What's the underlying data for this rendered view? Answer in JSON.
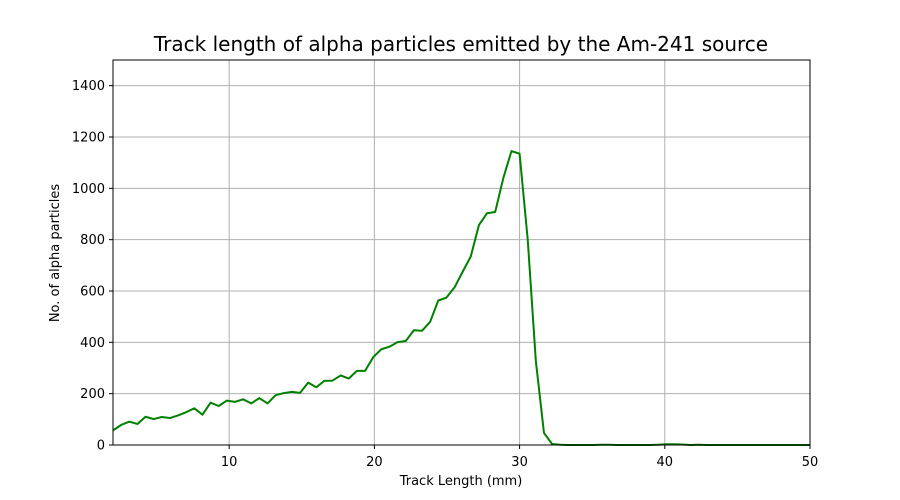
{
  "chart_data": {
    "type": "line",
    "title": "Track length of alpha particles emitted by the Am-241 source",
    "xlabel": "Track Length (mm)",
    "ylabel": "No. of alpha particles",
    "xlim": [
      2,
      50
    ],
    "ylim": [
      0,
      1500
    ],
    "xticks": [
      10,
      20,
      30,
      40,
      50
    ],
    "yticks": [
      0,
      200,
      400,
      600,
      800,
      1000,
      1200,
      1400
    ],
    "grid": true,
    "series": [
      {
        "color": "#008000",
        "x": [
          2.0,
          2.56,
          3.12,
          3.68,
          4.24,
          4.8,
          5.36,
          5.92,
          6.48,
          7.04,
          7.6,
          8.16,
          8.72,
          9.28,
          9.84,
          10.4,
          10.96,
          11.52,
          12.08,
          12.64,
          13.2,
          13.76,
          14.32,
          14.88,
          15.44,
          16.0,
          16.56,
          17.12,
          17.68,
          18.24,
          18.8,
          19.36,
          19.92,
          20.48,
          21.04,
          21.6,
          22.16,
          22.72,
          23.28,
          23.84,
          24.4,
          24.96,
          25.52,
          26.08,
          26.64,
          27.2,
          27.76,
          28.32,
          28.88,
          29.44,
          30.0,
          30.56,
          31.12,
          31.68,
          32.24,
          32.8,
          33.36,
          33.92,
          34.48,
          35.04,
          35.6,
          36.16,
          36.72,
          37.28,
          37.84,
          38.4,
          38.96,
          39.52,
          40.08,
          40.64,
          41.2,
          41.76,
          42.32,
          42.88,
          43.44,
          44.0,
          45.0,
          46.0,
          47.0,
          48.0,
          49.0,
          50.0
        ],
        "y": [
          57,
          78,
          91,
          82,
          110,
          101,
          109,
          105,
          115,
          128,
          143,
          118,
          165,
          152,
          173,
          168,
          178,
          162,
          183,
          162,
          194,
          202,
          207,
          203,
          243,
          225,
          250,
          251,
          271,
          259,
          289,
          289,
          342,
          373,
          383,
          401,
          405,
          447,
          445,
          480,
          563,
          574,
          614,
          675,
          735,
          857,
          903,
          908,
          1040,
          1145,
          1135,
          801,
          327,
          47,
          4,
          1,
          0,
          0,
          0,
          0,
          1,
          1,
          0,
          0,
          0,
          0,
          0,
          1,
          3,
          3,
          2,
          0,
          1,
          0,
          0,
          0,
          0,
          0,
          0,
          0,
          0,
          0
        ]
      }
    ]
  }
}
